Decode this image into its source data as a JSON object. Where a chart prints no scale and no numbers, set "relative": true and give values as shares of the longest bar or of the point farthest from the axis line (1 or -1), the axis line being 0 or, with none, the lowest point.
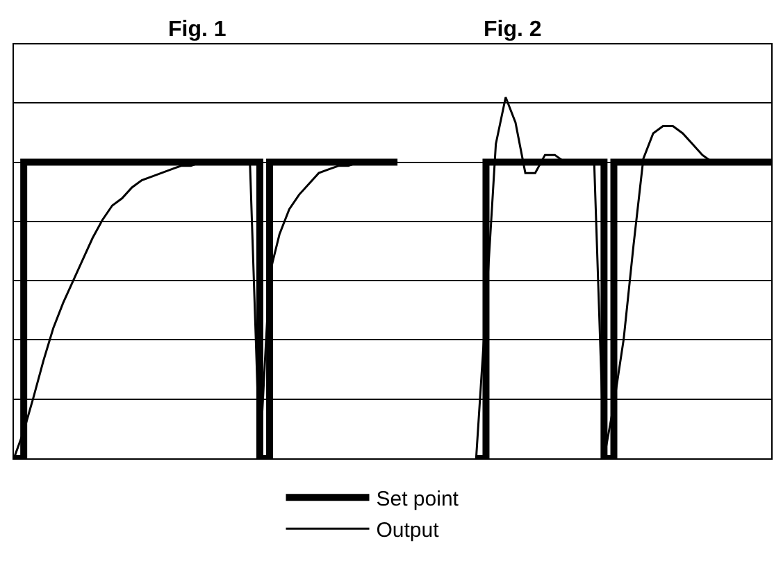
{
  "chart_data": {
    "type": "line",
    "relative": true,
    "grid": "y",
    "legend": "bottom",
    "annotations": [
      "Fig. 1",
      "Fig. 2"
    ],
    "categories": [
      null,
      null,
      null,
      null,
      null,
      null,
      null,
      null,
      null,
      null,
      null,
      null,
      null,
      null,
      null,
      null,
      null,
      null,
      null,
      null,
      null,
      null,
      null,
      null,
      null,
      null,
      null,
      null,
      null,
      null,
      null,
      null,
      null,
      null,
      null,
      null,
      null,
      null,
      null,
      null,
      null,
      null,
      null,
      null,
      null,
      null,
      null,
      null,
      null,
      null,
      null,
      null,
      null,
      null,
      null,
      null,
      null,
      null,
      null,
      null,
      null,
      null,
      null,
      null,
      null,
      null,
      null,
      null,
      null,
      null,
      null,
      null,
      null,
      null,
      null,
      null,
      null,
      null
    ],
    "series": [
      {
        "name": "Set point",
        "type": "step",
        "color": "#000000",
        "values": [
          0,
          0.82,
          0.82,
          0.82,
          0.82,
          0.82,
          0.82,
          0.82,
          0.82,
          0.82,
          0.82,
          0.82,
          0.82,
          0.82,
          0.82,
          0.82,
          0.82,
          0.82,
          0.82,
          0.82,
          0.82,
          0.82,
          0.82,
          0.82,
          0.82,
          0,
          0.82,
          0.82,
          0.82,
          0.82,
          0.82,
          0.82,
          0.82,
          0.82,
          0.82,
          0.82,
          0.82,
          0.82,
          0.82,
          0.82,
          null,
          null,
          null,
          null,
          null,
          null,
          null,
          0,
          0.82,
          0.82,
          0.82,
          0.82,
          0.82,
          0.82,
          0.82,
          0.82,
          0.82,
          0.82,
          0.82,
          0.82,
          0,
          0.82,
          0.82,
          0.82,
          0.82,
          0.82,
          0.82,
          0.82,
          0.82,
          0.82,
          0.82,
          0.82,
          0.82,
          0.82,
          0.82,
          0.82,
          0.82,
          0.82
        ]
      },
      {
        "name": "Output",
        "type": "line",
        "color": "#000000",
        "values": [
          0,
          0.075,
          0.17,
          0.27,
          0.36,
          0.43,
          0.49,
          0.55,
          0.61,
          0.66,
          0.7,
          0.72,
          0.75,
          0.77,
          0.78,
          0.79,
          0.8,
          0.81,
          0.81,
          0.82,
          0.82,
          0.82,
          0.82,
          0.82,
          0.82,
          0,
          0.51,
          0.62,
          0.69,
          0.73,
          0.76,
          0.79,
          0.8,
          0.81,
          0.81,
          0.82,
          0.82,
          0.82,
          0.82,
          0.82,
          null,
          null,
          null,
          null,
          null,
          null,
          null,
          0,
          0.42,
          0.87,
          1,
          0.93,
          0.79,
          0.79,
          0.84,
          0.84,
          0.82,
          0.82,
          0.82,
          0.82,
          0,
          0.15,
          0.33,
          0.59,
          0.83,
          0.9,
          0.92,
          0.92,
          0.9,
          0.87,
          0.84,
          0.82,
          0.82,
          0.82,
          0.82,
          0.82,
          0.82,
          0.82
        ]
      }
    ]
  }
}
